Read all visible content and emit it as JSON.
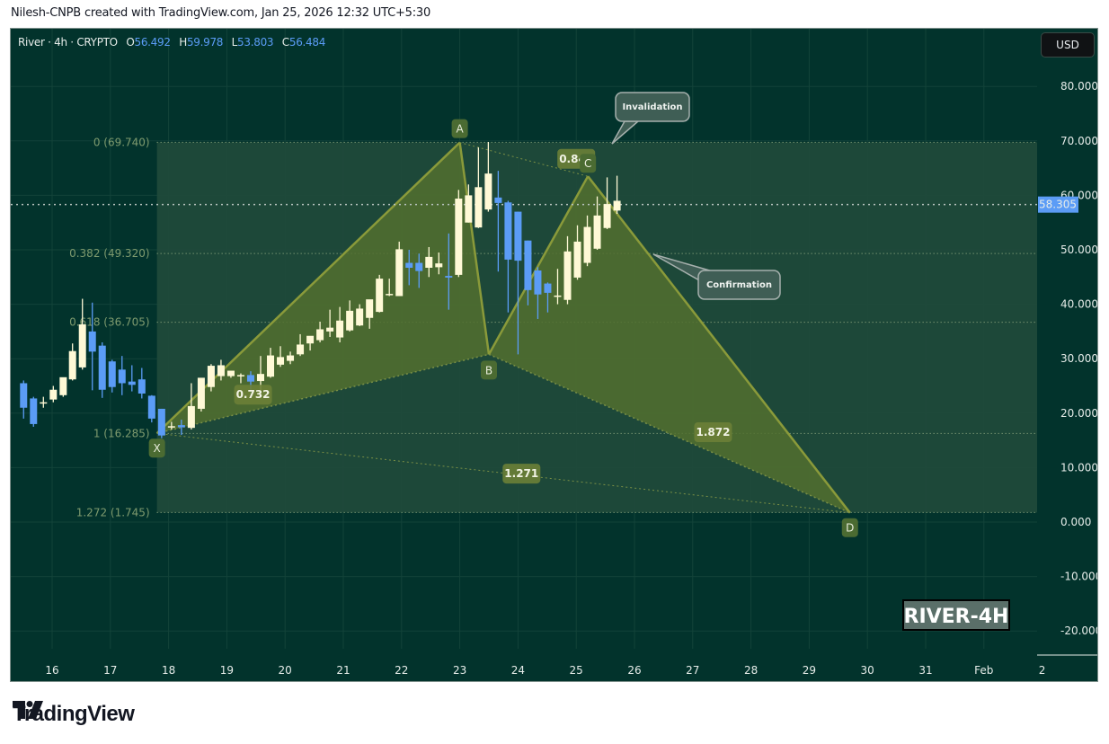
{
  "header": {
    "credit": "Nilesh-CNPB created with TradingView.com, Jan 25, 2026 12:32 UTC+5:30"
  },
  "legend": {
    "symbol": "River · 4h · CRYPTO",
    "open_label": "O",
    "open": "56.492",
    "high_label": "H",
    "high": "59.978",
    "low_label": "L",
    "low": "53.803",
    "close_label": "C",
    "close": "56.484"
  },
  "currency_button": "USD",
  "current_price": "58.305",
  "watermark": "RIVER-4H",
  "brand": "TradingView",
  "colors": {
    "background": "#02332c",
    "fib_zone": "#1f4a3a",
    "pattern_fill": "#52702f",
    "pattern_line": "#8a9a3a",
    "bull_candle": "#fff9d6",
    "bear_candle": "#5b9cf6",
    "price_tag": "#5b9cf6",
    "label_bg": "#4a6a35"
  },
  "chart_data": {
    "type": "candlestick",
    "title": "River · 4h · CRYPTO",
    "xlabel": "",
    "ylabel": "USD",
    "ylim": [
      -25,
      87
    ],
    "grid": true,
    "y_ticks": [
      "80.000",
      "70.000",
      "60.000",
      "50.000",
      "40.000",
      "30.000",
      "20.000",
      "10.000",
      "0.000",
      "-10.000",
      "-20.000"
    ],
    "x_ticks": [
      "16",
      "17",
      "18",
      "19",
      "20",
      "21",
      "22",
      "23",
      "24",
      "25",
      "26",
      "27",
      "28",
      "29",
      "30",
      "31",
      "Feb"
    ],
    "last_price": 58.305,
    "ohlc_last": {
      "open": 56.492,
      "high": 59.978,
      "low": 53.803,
      "close": 56.484
    },
    "fib_levels": [
      {
        "ratio": "0",
        "price": 69.74,
        "label": "0 (69.740)"
      },
      {
        "ratio": "0.382",
        "price": 49.32,
        "label": "0.382 (49.320)"
      },
      {
        "ratio": "0.618",
        "price": 36.705,
        "label": "0.618 (36.705)"
      },
      {
        "ratio": "1",
        "price": 16.285,
        "label": "1 (16.285)"
      },
      {
        "ratio": "1.272",
        "price": 1.745,
        "label": "1.272 (1.745)"
      }
    ],
    "harmonic_pattern": {
      "points": [
        {
          "name": "X",
          "date": "17.8",
          "price": 16.3
        },
        {
          "name": "A",
          "date": "23.0",
          "price": 69.7
        },
        {
          "name": "B",
          "date": "23.5",
          "price": 30.8
        },
        {
          "name": "C",
          "date": "25.2",
          "price": 63.5
        },
        {
          "name": "D",
          "date": "29.7",
          "price": 1.7
        }
      ],
      "ratios": [
        {
          "leg": "XB",
          "value": "0.732"
        },
        {
          "leg": "AC",
          "value": "0.844"
        },
        {
          "leg": "BD",
          "value": "1.872"
        },
        {
          "leg": "XD",
          "value": "1.271"
        }
      ]
    },
    "annotations": [
      {
        "text": "Invalidation",
        "price": 69.7
      },
      {
        "text": "Confirmation",
        "price": 49.3
      }
    ],
    "candles": [
      {
        "d": 15.68,
        "o": 25.5,
        "h": 26,
        "l": 19,
        "c": 21
      },
      {
        "d": 15.85,
        "o": 22.7,
        "h": 23,
        "l": 17.5,
        "c": 18.0
      },
      {
        "d": 16.02,
        "o": 22,
        "h": 23,
        "l": 21,
        "c": 22
      },
      {
        "d": 16.19,
        "o": 22.5,
        "h": 25,
        "l": 22,
        "c": 24.3
      },
      {
        "d": 16.36,
        "o": 23.3,
        "h": 26.5,
        "l": 23,
        "c": 26.6
      },
      {
        "d": 16.52,
        "o": 26.2,
        "h": 32.8,
        "l": 26,
        "c": 31.4
      },
      {
        "d": 16.69,
        "o": 28.4,
        "h": 41.0,
        "l": 28,
        "c": 36.3
      },
      {
        "d": 16.86,
        "o": 35,
        "h": 40.3,
        "l": 24.2,
        "c": 31.3
      },
      {
        "d": 17.03,
        "o": 32.4,
        "h": 33,
        "l": 22.8,
        "c": 24.3
      },
      {
        "d": 17.2,
        "o": 29.5,
        "h": 29.8,
        "l": 23.8,
        "c": 24.8
      },
      {
        "d": 17.37,
        "o": 28,
        "h": 30.5,
        "l": 23.3,
        "c": 25.5
      },
      {
        "d": 17.54,
        "o": 25.8,
        "h": 28.8,
        "l": 24,
        "c": 25.2
      },
      {
        "d": 17.71,
        "o": 26.2,
        "h": 28.3,
        "l": 22.7,
        "c": 23.6
      },
      {
        "d": 17.88,
        "o": 23.2,
        "h": 23.3,
        "l": 18.3,
        "c": 19.0
      },
      {
        "d": 18.05,
        "o": 20.8,
        "h": 20.8,
        "l": 15.4,
        "c": 15.9
      },
      {
        "d": 18.22,
        "o": 17.6,
        "h": 18.4,
        "l": 17,
        "c": 17.6
      },
      {
        "d": 18.39,
        "o": 17.8,
        "h": 18.8,
        "l": 16,
        "c": 17.4
      },
      {
        "d": 18.56,
        "o": 17.3,
        "h": 25.5,
        "l": 17,
        "c": 21.3
      },
      {
        "d": 18.73,
        "o": 20.8,
        "h": 25.8,
        "l": 20.3,
        "c": 26.5
      },
      {
        "d": 18.9,
        "o": 24.8,
        "h": 29,
        "l": 24,
        "c": 28.7
      },
      {
        "d": 19.07,
        "o": 26.8,
        "h": 29.8,
        "l": 26,
        "c": 28.8
      },
      {
        "d": 19.24,
        "o": 26.8,
        "h": 27.5,
        "l": 26.5,
        "c": 27.8
      },
      {
        "d": 19.41,
        "o": 27,
        "h": 27.3,
        "l": 25.5,
        "c": 27
      },
      {
        "d": 19.58,
        "o": 27,
        "h": 27.7,
        "l": 22.8,
        "c": 25.8
      },
      {
        "d": 19.75,
        "o": 25.9,
        "h": 30.5,
        "l": 23,
        "c": 27.2
      },
      {
        "d": 19.92,
        "o": 26.7,
        "h": 32,
        "l": 26.5,
        "c": 30.6
      },
      {
        "d": 20.09,
        "o": 28.9,
        "h": 32.3,
        "l": 28.5,
        "c": 30.3
      },
      {
        "d": 20.26,
        "o": 29.6,
        "h": 31.3,
        "l": 29,
        "c": 30.6
      },
      {
        "d": 20.43,
        "o": 30.8,
        "h": 34.5,
        "l": 30.5,
        "c": 32.6
      },
      {
        "d": 20.6,
        "o": 32.8,
        "h": 34,
        "l": 31.5,
        "c": 34.2
      },
      {
        "d": 20.77,
        "o": 33.4,
        "h": 36.8,
        "l": 33,
        "c": 35.4
      },
      {
        "d": 20.94,
        "o": 35,
        "h": 39,
        "l": 34,
        "c": 35.7
      },
      {
        "d": 21.11,
        "o": 33.9,
        "h": 39.5,
        "l": 33,
        "c": 37.0
      },
      {
        "d": 21.28,
        "o": 35.2,
        "h": 40.7,
        "l": 35,
        "c": 38.8
      },
      {
        "d": 21.45,
        "o": 36.1,
        "h": 40,
        "l": 36,
        "c": 39.2
      },
      {
        "d": 21.62,
        "o": 37.5,
        "h": 40.5,
        "l": 35.5,
        "c": 40.9
      },
      {
        "d": 21.79,
        "o": 38.6,
        "h": 45.4,
        "l": 38.5,
        "c": 44.7
      },
      {
        "d": 21.96,
        "o": 41.8,
        "h": 44.7,
        "l": 41.5,
        "c": 41.9
      },
      {
        "d": 22.13,
        "o": 41.5,
        "h": 51.5,
        "l": 41.5,
        "c": 50.1
      },
      {
        "d": 22.3,
        "o": 47.6,
        "h": 50,
        "l": 43.5,
        "c": 46.7
      },
      {
        "d": 22.47,
        "o": 47.6,
        "h": 49.3,
        "l": 43,
        "c": 46.1
      },
      {
        "d": 22.64,
        "o": 46.7,
        "h": 50.5,
        "l": 45,
        "c": 48.7
      },
      {
        "d": 22.81,
        "o": 46.8,
        "h": 49.5,
        "l": 45.5,
        "c": 47.5
      },
      {
        "d": 22.98,
        "o": 45.2,
        "h": 53,
        "l": 39,
        "c": 44.9
      },
      {
        "d": 23.15,
        "o": 45.4,
        "h": 61,
        "l": 45,
        "c": 59.4
      },
      {
        "d": 23.32,
        "o": 55.0,
        "h": 62,
        "l": 55,
        "c": 60.0
      },
      {
        "d": 23.49,
        "o": 54.1,
        "h": 68.8,
        "l": 54,
        "c": 61.5
      },
      {
        "d": 23.66,
        "o": 57.4,
        "h": 69.8,
        "l": 57,
        "c": 64.0
      },
      {
        "d": 23.83,
        "o": 59.6,
        "h": 64.5,
        "l": 46,
        "c": 58.6
      },
      {
        "d": 24.0,
        "o": 58.7,
        "h": 59,
        "l": 38.5,
        "c": 48.2
      },
      {
        "d": 24.17,
        "o": 57.0,
        "h": 57,
        "l": 30.8,
        "c": 48.0
      },
      {
        "d": 24.34,
        "o": 51.7,
        "h": 51.7,
        "l": 39.8,
        "c": 42.6
      },
      {
        "d": 24.51,
        "o": 46.2,
        "h": 46.8,
        "l": 37.3,
        "c": 41.8
      },
      {
        "d": 24.68,
        "o": 43.8,
        "h": 44,
        "l": 38.5,
        "c": 42.1
      },
      {
        "d": 24.85,
        "o": 41.6,
        "h": 46.5,
        "l": 40,
        "c": 41.6
      },
      {
        "d": 25.02,
        "o": 40.8,
        "h": 52.5,
        "l": 40,
        "c": 49.7
      },
      {
        "d": 25.19,
        "o": 44.9,
        "h": 54.5,
        "l": 44.5,
        "c": 51.5
      },
      {
        "d": 25.36,
        "o": 47.6,
        "h": 56.3,
        "l": 47,
        "c": 54.2
      },
      {
        "d": 25.53,
        "o": 50.2,
        "h": 59.8,
        "l": 50,
        "c": 56.3
      },
      {
        "d": 25.7,
        "o": 54.0,
        "h": 63.3,
        "l": 53.8,
        "c": 58.4
      },
      {
        "d": 25.87,
        "o": 57.2,
        "h": 63.6,
        "l": 56.6,
        "c": 59.0
      }
    ]
  }
}
